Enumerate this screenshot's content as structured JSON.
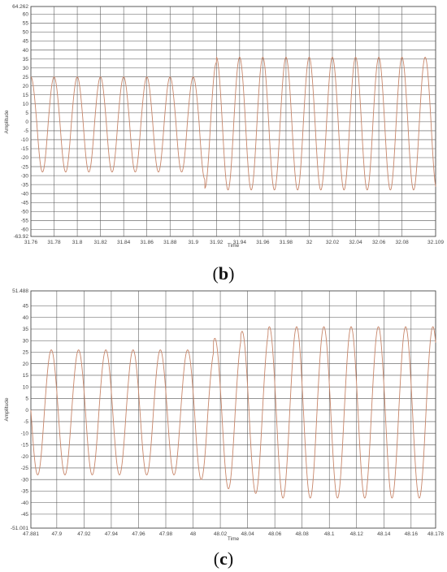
{
  "chart_data": [
    {
      "type": "line",
      "panel_label_open": "(",
      "panel_label_letter": "b",
      "panel_label_close": ")",
      "xlabel": "Time",
      "ylabel": "Amplitude",
      "xlim": [
        31.76,
        32.109
      ],
      "ylim": [
        -63.92,
        64.262
      ],
      "x_ticks": [
        "31.76",
        "31.78",
        "31.8",
        "31.82",
        "31.84",
        "31.86",
        "31.88",
        "31.9",
        "31.92",
        "31.94",
        "31.96",
        "31.98",
        "32",
        "32.02",
        "32.04",
        "32.06",
        "32.08",
        "32.109"
      ],
      "y_ticks": [
        "64.262",
        "60",
        "55",
        "50",
        "45",
        "40",
        "35",
        "30",
        "25",
        "20",
        "15",
        "10",
        "5",
        "0",
        "-5",
        "-10",
        "-15",
        "-20",
        "-25",
        "-30",
        "-35",
        "-40",
        "-45",
        "-50",
        "-55",
        "-60",
        "-63.92"
      ],
      "grid": true,
      "line_color": "#c8866a",
      "series": [
        {
          "frequency_hz": 50,
          "phase_start": 31.76,
          "segments": [
            {
              "x_from": 31.76,
              "x_to": 31.9,
              "max": 25,
              "min": -28
            },
            {
              "x_from": 31.9,
              "x_to": 31.91,
              "max": 25,
              "min": -32
            },
            {
              "x_from": 31.91,
              "x_to": 31.92,
              "max": 33,
              "min": -37
            },
            {
              "x_from": 31.92,
              "x_to": 32.109,
              "max": 36,
              "min": -38
            }
          ]
        }
      ]
    },
    {
      "type": "line",
      "panel_label_open": "(",
      "panel_label_letter": "c",
      "panel_label_close": ")",
      "xlabel": "Time",
      "ylabel": "Amplitude",
      "xlim": [
        47.881,
        48.178
      ],
      "ylim": [
        -51.001,
        51.488
      ],
      "x_ticks": [
        "47.881",
        "47.9",
        "47.92",
        "47.94",
        "47.96",
        "47.98",
        "48",
        "48.02",
        "48.04",
        "48.06",
        "48.08",
        "48.1",
        "48.12",
        "48.14",
        "48.16",
        "48.178"
      ],
      "y_ticks": [
        "51.488",
        "45",
        "40",
        "35",
        "30",
        "25",
        "20",
        "15",
        "10",
        "5",
        "0",
        "-5",
        "-10",
        "-15",
        "-20",
        "-25",
        "-30",
        "-35",
        "-40",
        "-45",
        "-51.001"
      ],
      "grid": true,
      "line_color": "#c8866a",
      "series": [
        {
          "frequency_hz": 50,
          "phase_start": 47.876,
          "segments": [
            {
              "x_from": 47.881,
              "x_to": 47.995,
              "max": 26,
              "min": -28
            },
            {
              "x_from": 47.995,
              "x_to": 48.015,
              "max": 26,
              "min": -30
            },
            {
              "x_from": 48.015,
              "x_to": 48.035,
              "max": 31,
              "min": -34
            },
            {
              "x_from": 48.035,
              "x_to": 48.055,
              "max": 34,
              "min": -36
            },
            {
              "x_from": 48.055,
              "x_to": 48.178,
              "max": 36,
              "min": -38
            }
          ]
        }
      ]
    }
  ]
}
